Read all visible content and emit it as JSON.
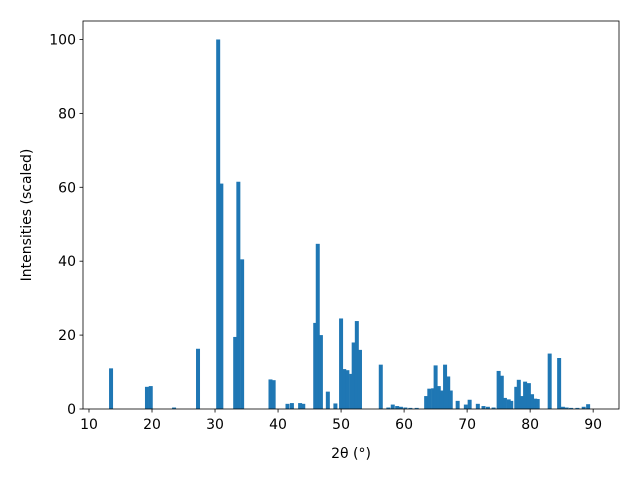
{
  "chart_data": {
    "type": "bar",
    "xlabel": "2θ (°)",
    "ylabel": "Intensities (scaled)",
    "color": "#1f77b4",
    "x": [
      13.5,
      19.2,
      19.8,
      23.5,
      27.3,
      30.5,
      31.0,
      33.2,
      33.7,
      34.3,
      38.8,
      39.3,
      41.5,
      42.2,
      43.5,
      44.0,
      45.9,
      46.3,
      46.8,
      47.9,
      49.1,
      50.0,
      50.5,
      51.0,
      51.6,
      52.0,
      52.5,
      53.0,
      56.3,
      57.5,
      58.2,
      58.9,
      59.5,
      60.2,
      61.0,
      62.0,
      63.5,
      64.0,
      64.6,
      65.0,
      65.5,
      66.0,
      66.5,
      67.0,
      67.4,
      68.5,
      69.8,
      70.4,
      71.7,
      72.6,
      73.3,
      74.2,
      75.0,
      75.5,
      76.0,
      76.6,
      77.0,
      77.8,
      78.2,
      78.7,
      79.2,
      79.8,
      80.3,
      80.8,
      81.2,
      83.1,
      84.6,
      85.2,
      85.8,
      86.5,
      87.5,
      88.5,
      89.2
    ],
    "values": [
      11,
      6,
      6.2,
      0.4,
      16.3,
      100,
      61,
      19.5,
      61.5,
      40.5,
      8,
      7.8,
      1.4,
      1.6,
      1.6,
      1.4,
      23.3,
      44.7,
      20,
      4.7,
      1.5,
      24.5,
      10.8,
      10.5,
      9.5,
      18,
      23.8,
      16,
      12,
      0.4,
      1.2,
      0.8,
      0.6,
      0.4,
      0.3,
      0.3,
      3.5,
      5.5,
      5.6,
      11.8,
      6.2,
      5,
      12,
      8.8,
      5,
      2.2,
      1.2,
      2.5,
      1.4,
      0.8,
      0.6,
      0.4,
      10.3,
      9,
      3,
      2.6,
      2.2,
      6,
      7.9,
      3.5,
      7.4,
      7,
      4,
      2.8,
      2.7,
      15,
      13.8,
      0.6,
      0.4,
      0.3,
      0.3,
      0.6,
      1.3
    ],
    "xlim": [
      9.05,
      94.1
    ],
    "ylim": [
      0,
      105
    ],
    "xticks": [
      10,
      20,
      30,
      40,
      50,
      60,
      70,
      80,
      90
    ],
    "yticks": [
      0,
      20,
      40,
      60,
      80,
      100
    ]
  }
}
